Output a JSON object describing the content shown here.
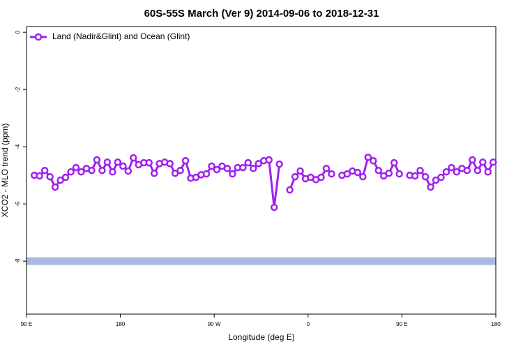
{
  "chart_data": {
    "type": "line",
    "title": "60S-55S March (Ver 9)   2014-09-06 to 2018-12-31",
    "x_label": "Longitude (deg E)",
    "y_label": "XCO2 - MLO trend (ppm)",
    "xlim": [
      90,
      540
    ],
    "ylim": [
      -9.85,
      0.2
    ],
    "xticks": [
      {
        "value": 90,
        "label": "90 E"
      },
      {
        "value": 180,
        "label": "180"
      },
      {
        "value": 270,
        "label": "90 W"
      },
      {
        "value": 360,
        "label": "0"
      },
      {
        "value": 450,
        "label": "90 E"
      },
      {
        "value": 540,
        "label": "180"
      }
    ],
    "yticks": [
      -8,
      -6,
      -4,
      -2,
      0
    ],
    "legend": "top-left",
    "band": {
      "y": -8,
      "color": "#a7bbdd"
    },
    "x": [
      97.5,
      102.5,
      107.5,
      112.5,
      117.5,
      122.5,
      127.5,
      132.5,
      137.5,
      142.5,
      147.5,
      152.5,
      157.5,
      162.5,
      167.5,
      172.5,
      177.5,
      182.5,
      187.5,
      192.5,
      197.5,
      202.5,
      207.5,
      212.5,
      217.5,
      222.5,
      227.5,
      232.5,
      237.5,
      242.5,
      247.5,
      252.5,
      257.5,
      262.5,
      267.5,
      272.5,
      277.5,
      282.5,
      287.5,
      292.5,
      297.5,
      302.5,
      307.5,
      312.5,
      317.5,
      322.5,
      327.5,
      332.5,
      337.5,
      342.5,
      347.5,
      352.5,
      357.5,
      362.5,
      367.5,
      372.5,
      377.5,
      382.5,
      387.5,
      392.5,
      397.5,
      402.5,
      407.5,
      412.5,
      417.5,
      422.5,
      427.5,
      432.5,
      437.5,
      442.5,
      447.5,
      452.5,
      457.5,
      462.5,
      467.5,
      472.5,
      477.5,
      482.5,
      487.5,
      492.5,
      497.5,
      502.5,
      507.5,
      512.5,
      517.5,
      522.5,
      527.5,
      532.5,
      537.5
    ],
    "series": [
      {
        "name": "Land (Nadir&Glint) and Ocean (Glint)",
        "color": "#a020f0",
        "values": [
          -5.0,
          -5.02,
          -4.83,
          -5.05,
          -5.41,
          -5.17,
          -5.07,
          -4.88,
          -4.73,
          -4.88,
          -4.76,
          -4.83,
          -4.46,
          -4.83,
          -4.54,
          -4.88,
          -4.54,
          -4.68,
          -4.85,
          -4.39,
          -4.63,
          -4.56,
          -4.56,
          -4.93,
          -4.59,
          -4.54,
          -4.59,
          -4.93,
          -4.83,
          -4.49,
          -5.1,
          -5.07,
          -4.98,
          -4.95,
          -4.68,
          -4.8,
          -4.68,
          -4.76,
          -4.95,
          -4.73,
          -4.73,
          -4.56,
          -4.76,
          -4.59,
          -4.49,
          -4.46,
          -6.12,
          -4.61,
          null,
          -5.51,
          -5.05,
          -4.85,
          -5.12,
          -5.07,
          -5.15,
          -5.07,
          -4.76,
          -4.95,
          null,
          -5.0,
          -4.95,
          -4.85,
          -4.9,
          -5.05,
          -4.37,
          -4.49,
          -4.83,
          -5.02,
          -4.93,
          -4.56,
          -4.95,
          null,
          -5.0,
          -5.02,
          -4.83,
          -5.05,
          -5.41,
          -5.17,
          -5.07,
          -4.88,
          -4.73,
          -4.88,
          -4.76,
          -4.83,
          -4.46,
          -4.83,
          -4.54,
          -4.88,
          -4.54
        ]
      }
    ]
  }
}
